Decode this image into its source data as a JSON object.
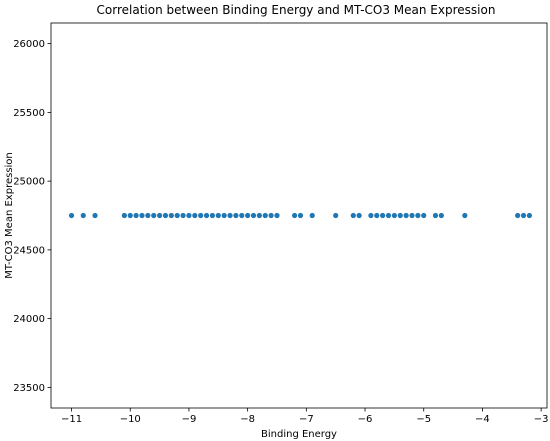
{
  "chart_data": {
    "type": "scatter",
    "title": "Correlation between Binding Energy and MT-CO3 Mean Expression",
    "xlabel": "Binding Energy",
    "ylabel": "MT-CO3 Mean Expression",
    "xlim": [
      -11.35,
      -2.9
    ],
    "ylim": [
      23350,
      26150
    ],
    "xticks": [
      -11,
      -10,
      -9,
      -8,
      -7,
      -6,
      -5,
      -4,
      -3
    ],
    "xtick_labels": [
      "−11",
      "−10",
      "−9",
      "−8",
      "−7",
      "−6",
      "−5",
      "−4",
      "−3"
    ],
    "yticks": [
      23500,
      24000,
      24500,
      25000,
      25500,
      26000
    ],
    "ytick_labels": [
      "23500",
      "24000",
      "24500",
      "25000",
      "25500",
      "26000"
    ],
    "grid": false,
    "marker_color": "#1f77b4",
    "points": [
      {
        "x": -11.0,
        "y": 24750
      },
      {
        "x": -10.8,
        "y": 24750
      },
      {
        "x": -10.6,
        "y": 24750
      },
      {
        "x": -10.1,
        "y": 24750
      },
      {
        "x": -10.0,
        "y": 24750
      },
      {
        "x": -9.9,
        "y": 24750
      },
      {
        "x": -9.8,
        "y": 24750
      },
      {
        "x": -9.7,
        "y": 24750
      },
      {
        "x": -9.6,
        "y": 24750
      },
      {
        "x": -9.5,
        "y": 24750
      },
      {
        "x": -9.4,
        "y": 24750
      },
      {
        "x": -9.3,
        "y": 24750
      },
      {
        "x": -9.2,
        "y": 24750
      },
      {
        "x": -9.1,
        "y": 24750
      },
      {
        "x": -9.0,
        "y": 24750
      },
      {
        "x": -8.9,
        "y": 24750
      },
      {
        "x": -8.8,
        "y": 24750
      },
      {
        "x": -8.7,
        "y": 24750
      },
      {
        "x": -8.6,
        "y": 24750
      },
      {
        "x": -8.5,
        "y": 24750
      },
      {
        "x": -8.4,
        "y": 24750
      },
      {
        "x": -8.3,
        "y": 24750
      },
      {
        "x": -8.2,
        "y": 24750
      },
      {
        "x": -8.1,
        "y": 24750
      },
      {
        "x": -8.0,
        "y": 24750
      },
      {
        "x": -7.9,
        "y": 24750
      },
      {
        "x": -7.8,
        "y": 24750
      },
      {
        "x": -7.7,
        "y": 24750
      },
      {
        "x": -7.6,
        "y": 24750
      },
      {
        "x": -7.5,
        "y": 24750
      },
      {
        "x": -7.2,
        "y": 24750
      },
      {
        "x": -7.1,
        "y": 24750
      },
      {
        "x": -6.9,
        "y": 24750
      },
      {
        "x": -6.5,
        "y": 24750
      },
      {
        "x": -6.2,
        "y": 24750
      },
      {
        "x": -6.1,
        "y": 24750
      },
      {
        "x": -5.9,
        "y": 24750
      },
      {
        "x": -5.8,
        "y": 24750
      },
      {
        "x": -5.7,
        "y": 24750
      },
      {
        "x": -5.6,
        "y": 24750
      },
      {
        "x": -5.5,
        "y": 24750
      },
      {
        "x": -5.4,
        "y": 24750
      },
      {
        "x": -5.3,
        "y": 24750
      },
      {
        "x": -5.2,
        "y": 24750
      },
      {
        "x": -5.1,
        "y": 24750
      },
      {
        "x": -5.0,
        "y": 24750
      },
      {
        "x": -4.8,
        "y": 24750
      },
      {
        "x": -4.7,
        "y": 24750
      },
      {
        "x": -4.3,
        "y": 24750
      },
      {
        "x": -3.4,
        "y": 24750
      },
      {
        "x": -3.3,
        "y": 24750
      },
      {
        "x": -3.2,
        "y": 24750
      }
    ]
  }
}
